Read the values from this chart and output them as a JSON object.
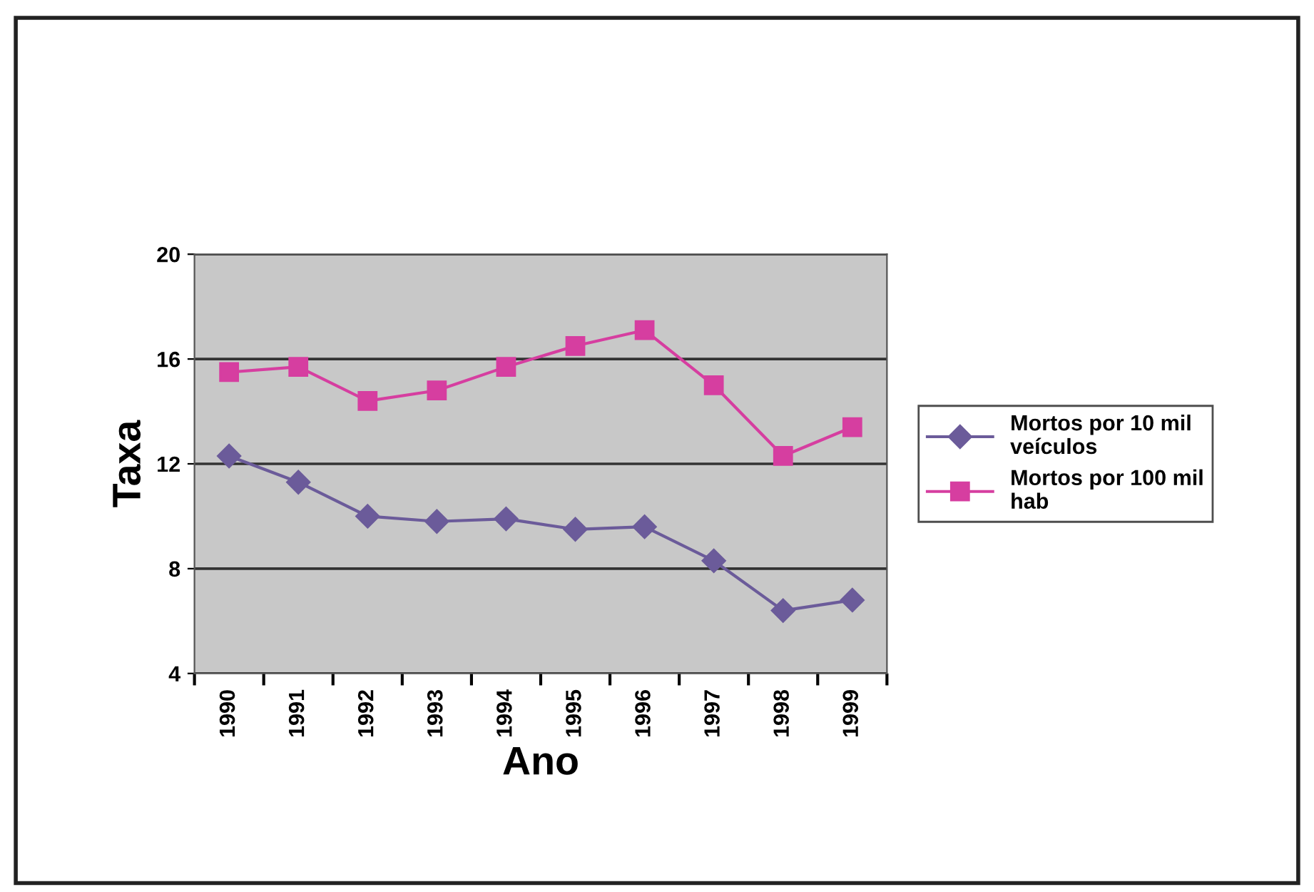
{
  "chart_data": {
    "type": "line",
    "xlabel": "Ano",
    "ylabel": "Taxa",
    "categories": [
      "1990",
      "1991",
      "1992",
      "1993",
      "1994",
      "1995",
      "1996",
      "1997",
      "1998",
      "1999"
    ],
    "series": [
      {
        "name": "Mortos por 10 mil veículos",
        "color": "#6b5b9a",
        "marker": "diamond",
        "values": [
          12.3,
          11.3,
          10.0,
          9.8,
          9.9,
          9.5,
          9.6,
          8.3,
          6.4,
          6.8
        ]
      },
      {
        "name": "Mortos por 100 mil hab",
        "color": "#d63ea0",
        "marker": "square",
        "values": [
          15.5,
          15.7,
          14.4,
          14.8,
          15.7,
          16.5,
          17.1,
          15.0,
          12.3,
          13.4
        ]
      }
    ],
    "ylim": [
      4,
      20
    ],
    "yticks": [
      4,
      8,
      12,
      16,
      20
    ],
    "grid": "y",
    "legend": "right",
    "line_style": "solid"
  }
}
